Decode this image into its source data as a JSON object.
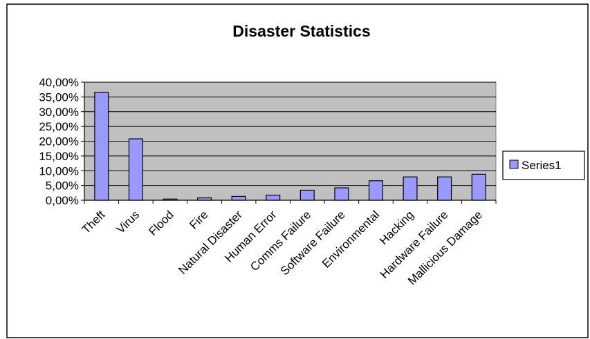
{
  "chart_data": {
    "type": "bar",
    "title": "Disaster Statistics",
    "categories": [
      "Theft",
      "Virus",
      "Flood",
      "Fire",
      "Natural Disaster",
      "Human Error",
      "Comms Failure",
      "Software Failure",
      "Environmental",
      "Hacking",
      "Hardware Failure",
      "Mallicious Damage"
    ],
    "series": [
      {
        "name": "Series1",
        "values": [
          36.6,
          20.8,
          0.4,
          0.8,
          1.3,
          1.7,
          3.4,
          4.2,
          6.6,
          7.9,
          7.9,
          8.8
        ]
      }
    ],
    "ylim": [
      0,
      40
    ],
    "yticks": [
      "0,00%",
      "5,00%",
      "10,00%",
      "15,00%",
      "20,00%",
      "25,00%",
      "30,00%",
      "35,00%",
      "40,00%"
    ],
    "grid": true,
    "legend": "right",
    "colors": {
      "bar": "#9999ff",
      "plot_bg": "#c0c0c0",
      "border": "#000000"
    }
  }
}
